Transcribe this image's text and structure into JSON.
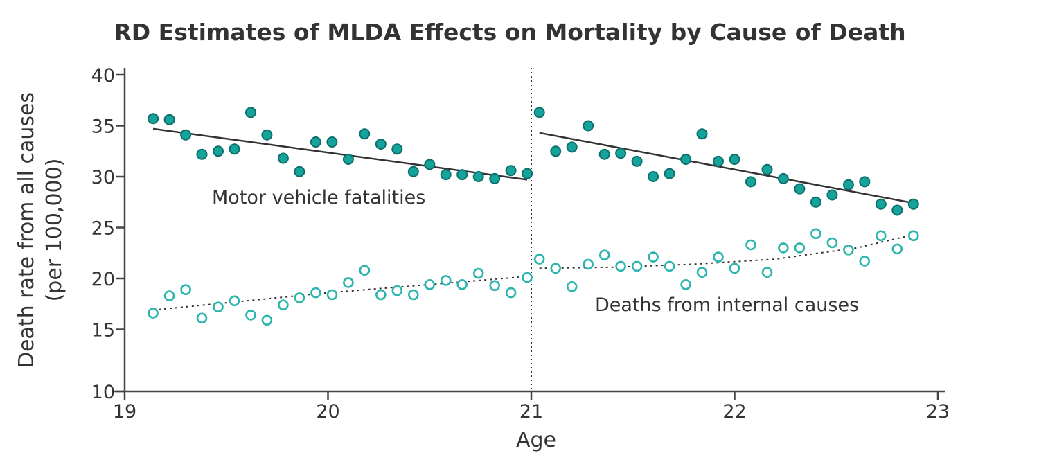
{
  "chart_data": {
    "type": "scatter",
    "title": "RD Estimates of MLDA Effects on Mortality by Cause of Death",
    "xlabel": "Age",
    "ylabel_line1": "Death rate from all causes",
    "ylabel_line2": "(per 100,000)",
    "xlim": [
      19,
      23
    ],
    "ylim": [
      10,
      40
    ],
    "x_ticks": [
      "19",
      "20",
      "21",
      "22",
      "23"
    ],
    "y_ticks": [
      "10",
      "15",
      "20",
      "25",
      "30",
      "35",
      "40"
    ],
    "cutoff": 21,
    "grid": false,
    "colors": {
      "series": "#16a39c",
      "text": "#333333",
      "axis": "#444444"
    },
    "annotations": {
      "motor": "Motor vehicle fatalities",
      "internal": "Deaths from internal causes"
    },
    "series": [
      {
        "key": "motor",
        "marker": "filled",
        "points": [
          [
            19.14,
            35.7
          ],
          [
            19.22,
            35.6
          ],
          [
            19.3,
            34.1
          ],
          [
            19.38,
            32.2
          ],
          [
            19.46,
            32.5
          ],
          [
            19.54,
            32.7
          ],
          [
            19.62,
            36.3
          ],
          [
            19.7,
            34.1
          ],
          [
            19.78,
            31.8
          ],
          [
            19.86,
            30.5
          ],
          [
            19.94,
            33.4
          ],
          [
            20.02,
            33.4
          ],
          [
            20.1,
            31.7
          ],
          [
            20.18,
            34.2
          ],
          [
            20.26,
            33.2
          ],
          [
            20.34,
            32.7
          ],
          [
            20.42,
            30.5
          ],
          [
            20.5,
            31.2
          ],
          [
            20.58,
            30.2
          ],
          [
            20.66,
            30.2
          ],
          [
            20.74,
            30.0
          ],
          [
            20.82,
            29.8
          ],
          [
            20.9,
            30.6
          ],
          [
            20.98,
            30.3
          ],
          [
            21.04,
            36.3
          ],
          [
            21.12,
            32.5
          ],
          [
            21.2,
            32.9
          ],
          [
            21.28,
            35.0
          ],
          [
            21.36,
            32.2
          ],
          [
            21.44,
            32.3
          ],
          [
            21.52,
            31.5
          ],
          [
            21.6,
            30.0
          ],
          [
            21.68,
            30.3
          ],
          [
            21.76,
            31.7
          ],
          [
            21.84,
            34.2
          ],
          [
            21.92,
            31.5
          ],
          [
            22.0,
            31.7
          ],
          [
            22.08,
            29.5
          ],
          [
            22.16,
            30.7
          ],
          [
            22.24,
            29.8
          ],
          [
            22.32,
            28.8
          ],
          [
            22.4,
            27.5
          ],
          [
            22.48,
            28.2
          ],
          [
            22.56,
            29.2
          ],
          [
            22.64,
            29.5
          ],
          [
            22.72,
            27.3
          ],
          [
            22.8,
            26.7
          ],
          [
            22.88,
            27.3
          ]
        ],
        "fit": [
          {
            "x": [
              19.14,
              20.98
            ],
            "y": [
              34.7,
              29.7
            ]
          },
          {
            "x": [
              21.04,
              22.88
            ],
            "y": [
              34.3,
              27.4
            ]
          }
        ]
      },
      {
        "key": "internal",
        "marker": "hollow",
        "points": [
          [
            19.14,
            16.6
          ],
          [
            19.22,
            18.3
          ],
          [
            19.3,
            18.9
          ],
          [
            19.38,
            16.1
          ],
          [
            19.46,
            17.2
          ],
          [
            19.54,
            17.8
          ],
          [
            19.62,
            16.4
          ],
          [
            19.7,
            15.9
          ],
          [
            19.78,
            17.4
          ],
          [
            19.86,
            18.1
          ],
          [
            19.94,
            18.6
          ],
          [
            20.02,
            18.4
          ],
          [
            20.1,
            19.6
          ],
          [
            20.18,
            20.8
          ],
          [
            20.26,
            18.4
          ],
          [
            20.34,
            18.8
          ],
          [
            20.42,
            18.4
          ],
          [
            20.5,
            19.4
          ],
          [
            20.58,
            19.8
          ],
          [
            20.66,
            19.4
          ],
          [
            20.74,
            20.5
          ],
          [
            20.82,
            19.3
          ],
          [
            20.9,
            18.6
          ],
          [
            20.98,
            20.1
          ],
          [
            21.04,
            21.9
          ],
          [
            21.12,
            21.0
          ],
          [
            21.2,
            19.2
          ],
          [
            21.28,
            21.4
          ],
          [
            21.36,
            22.3
          ],
          [
            21.44,
            21.2
          ],
          [
            21.52,
            21.2
          ],
          [
            21.6,
            22.1
          ],
          [
            21.68,
            21.2
          ],
          [
            21.76,
            19.4
          ],
          [
            21.84,
            20.6
          ],
          [
            21.92,
            22.1
          ],
          [
            22.0,
            21.0
          ],
          [
            22.08,
            23.3
          ],
          [
            22.16,
            20.6
          ],
          [
            22.24,
            23.0
          ],
          [
            22.32,
            23.0
          ],
          [
            22.4,
            24.4
          ],
          [
            22.48,
            23.5
          ],
          [
            22.56,
            22.8
          ],
          [
            22.64,
            21.7
          ],
          [
            22.72,
            24.2
          ],
          [
            22.8,
            22.9
          ],
          [
            22.88,
            24.2
          ]
        ],
        "fit": [
          {
            "x": [
              19.14,
              19.6,
              20.0,
              20.5,
              20.98
            ],
            "y": [
              16.9,
              17.8,
              18.6,
              19.4,
              20.2
            ]
          },
          {
            "x": [
              21.04,
              21.4,
              21.8,
              22.2,
              22.6,
              22.88
            ],
            "y": [
              21.0,
              21.1,
              21.4,
              21.9,
              23.0,
              24.3
            ]
          }
        ]
      }
    ]
  }
}
